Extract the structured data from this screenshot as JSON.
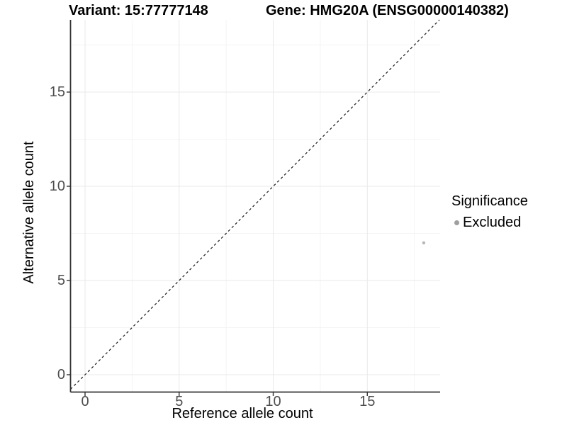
{
  "figure": {
    "title_left": "Variant: 15:77777148",
    "title_right": "Gene: HMG20A (ENSG00000140382)"
  },
  "chart_data": {
    "type": "scatter",
    "title": "Variant: 15:77777148 — Gene: HMG20A (ENSG00000140382)",
    "xlabel": "Reference allele count",
    "ylabel": "Alternative allele count",
    "xlim": [
      -0.77,
      18.87
    ],
    "ylim": [
      -0.92,
      18.83
    ],
    "x_ticks": [
      0,
      5,
      10,
      15
    ],
    "y_ticks": [
      0,
      5,
      10,
      15
    ],
    "x_minor_ticks": [
      2.5,
      7.5,
      12.5,
      17.5
    ],
    "y_minor_ticks": [
      2.5,
      7.5,
      12.5,
      17.5
    ],
    "grid": true,
    "points": [
      {
        "x": 18,
        "y": 7,
        "series": "Excluded"
      }
    ],
    "reference_line": {
      "style": "dashed",
      "slope": 1,
      "intercept": 0,
      "description": "identity line y = x"
    },
    "legend": {
      "title": "Significance",
      "position": "right",
      "entries": [
        {
          "label": "Excluded",
          "color": "#9e9e9e"
        }
      ]
    }
  },
  "colors": {
    "background": "#ffffff",
    "point": "#b7b7b7",
    "legend_key": "#9e9e9e",
    "grid_major": "#e9e9e9",
    "grid_minor": "#f4f4f4",
    "axis_line": "#333333",
    "tick_mark": "#333333",
    "tick_label": "#4d4d4d",
    "dashed_line": "#1a1a1a",
    "text": "#000000"
  }
}
